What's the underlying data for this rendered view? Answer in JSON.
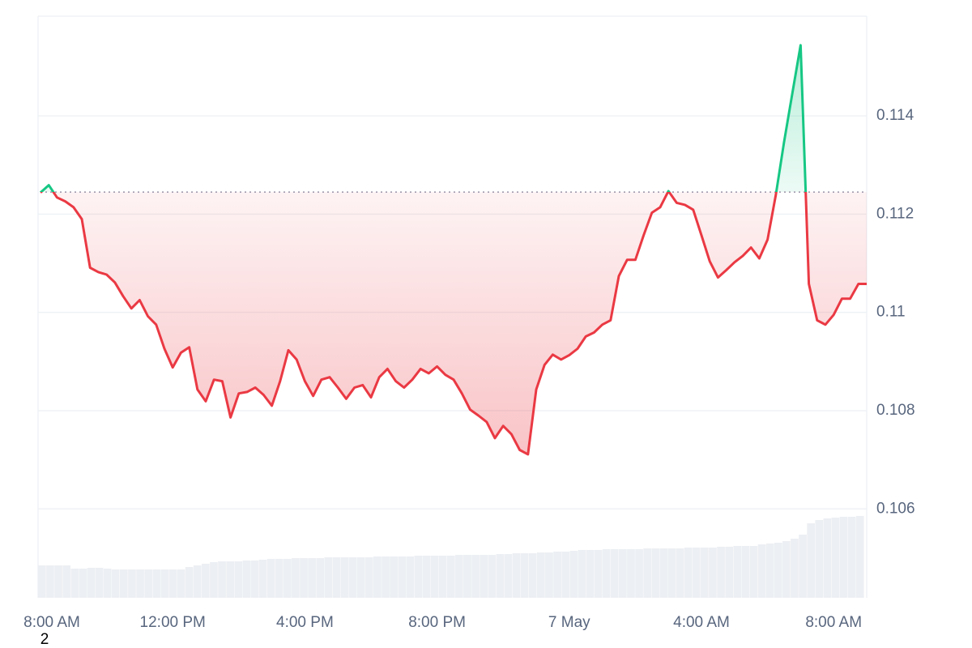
{
  "chart_data": {
    "type": "line",
    "baseline": 0.11245,
    "up_color": "#16c784",
    "down_color": "#ea3943",
    "values": [
      0.11244,
      0.11259,
      0.11234,
      0.11226,
      0.11214,
      0.1119,
      0.11091,
      0.11082,
      0.11077,
      0.11061,
      0.11033,
      0.11008,
      0.11025,
      0.10992,
      0.10975,
      0.10926,
      0.10888,
      0.10918,
      0.10929,
      0.10843,
      0.10819,
      0.10863,
      0.1086,
      0.10786,
      0.10835,
      0.10838,
      0.10847,
      0.10832,
      0.1081,
      0.1086,
      0.10923,
      0.10904,
      0.1086,
      0.1083,
      0.10863,
      0.10868,
      0.10847,
      0.10824,
      0.10847,
      0.10852,
      0.10827,
      0.10868,
      0.10885,
      0.1086,
      0.10847,
      0.10863,
      0.10885,
      0.10876,
      0.1089,
      0.10873,
      0.10863,
      0.10835,
      0.10802,
      0.1079,
      0.10777,
      0.10744,
      0.10769,
      0.10752,
      0.1072,
      0.10711,
      0.10843,
      0.10893,
      0.10914,
      0.10904,
      0.10913,
      0.10926,
      0.10951,
      0.10959,
      0.10975,
      0.10984,
      0.11074,
      0.11107,
      0.11107,
      0.11157,
      0.11203,
      0.11214,
      0.11247,
      0.11223,
      0.11219,
      0.11209,
      0.11157,
      0.11104,
      0.11071,
      0.11086,
      0.11102,
      0.11115,
      0.11132,
      0.1111,
      0.11148,
      0.11239,
      0.11347,
      0.11446,
      0.11544,
      0.11058,
      0.10984,
      0.10975,
      0.10995,
      0.11028,
      0.11028,
      0.11058,
      0.11058
    ],
    "volume": [
      40,
      40,
      40,
      40,
      36,
      36,
      37,
      37,
      36,
      35,
      35,
      35,
      35,
      35,
      35,
      35,
      35,
      35,
      38,
      40,
      42,
      44,
      45,
      45,
      45,
      46,
      46,
      47,
      48,
      48,
      48,
      49,
      49,
      49,
      49,
      50,
      50,
      50,
      50,
      50,
      50,
      51,
      51,
      51,
      51,
      51,
      52,
      52,
      52,
      52,
      52,
      53,
      53,
      53,
      53,
      53,
      54,
      54,
      55,
      55,
      55,
      56,
      56,
      57,
      57,
      58,
      59,
      59,
      59,
      60,
      60,
      60,
      60,
      60,
      61,
      61,
      61,
      61,
      61,
      62,
      62,
      62,
      62,
      63,
      63,
      64,
      64,
      64,
      66,
      67,
      68,
      70,
      73,
      78,
      92,
      96,
      98,
      99,
      100,
      100,
      101
    ],
    "xlim": [
      0,
      100
    ],
    "xticks": [
      {
        "value": 0,
        "label": "8:00 AM"
      },
      {
        "value": 16,
        "label": "12:00 PM"
      },
      {
        "value": 32,
        "label": "4:00 PM"
      },
      {
        "value": 48,
        "label": "8:00 PM"
      },
      {
        "value": 64,
        "label": "7 May"
      },
      {
        "value": 80,
        "label": "4:00 AM"
      },
      {
        "value": 96,
        "label": "8:00 AM"
      }
    ],
    "ylim": [
      0.10419,
      0.11603
    ],
    "yticks": [
      0.106,
      0.108,
      0.11,
      0.112,
      0.114
    ],
    "grid": true,
    "annotation": "2"
  }
}
